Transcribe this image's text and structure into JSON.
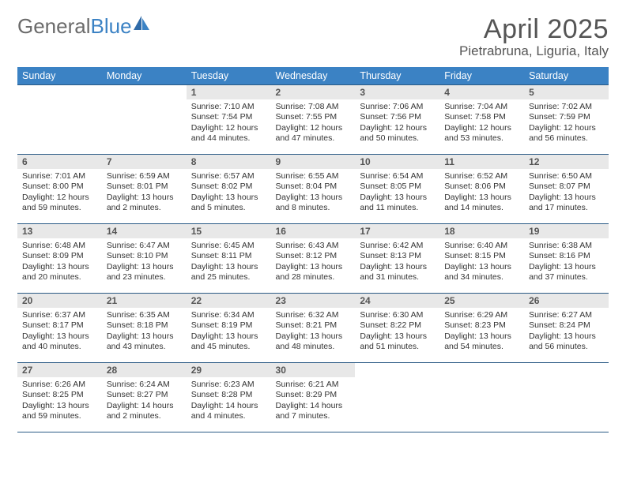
{
  "logo": {
    "text_general": "General",
    "text_blue": "Blue"
  },
  "title": "April 2025",
  "location": "Pietrabruna, Liguria, Italy",
  "colors": {
    "header_bg": "#3b82c4",
    "header_text": "#ffffff",
    "daynum_bg": "#e8e8e8",
    "rule": "#2a5a85",
    "logo_gray": "#6b6b6b",
    "logo_blue": "#3b82c4"
  },
  "day_headers": [
    "Sunday",
    "Monday",
    "Tuesday",
    "Wednesday",
    "Thursday",
    "Friday",
    "Saturday"
  ],
  "weeks": [
    [
      {
        "empty": true
      },
      {
        "empty": true
      },
      {
        "num": "1",
        "sunrise": "7:10 AM",
        "sunset": "7:54 PM",
        "daylight": "12 hours and 44 minutes."
      },
      {
        "num": "2",
        "sunrise": "7:08 AM",
        "sunset": "7:55 PM",
        "daylight": "12 hours and 47 minutes."
      },
      {
        "num": "3",
        "sunrise": "7:06 AM",
        "sunset": "7:56 PM",
        "daylight": "12 hours and 50 minutes."
      },
      {
        "num": "4",
        "sunrise": "7:04 AM",
        "sunset": "7:58 PM",
        "daylight": "12 hours and 53 minutes."
      },
      {
        "num": "5",
        "sunrise": "7:02 AM",
        "sunset": "7:59 PM",
        "daylight": "12 hours and 56 minutes."
      }
    ],
    [
      {
        "num": "6",
        "sunrise": "7:01 AM",
        "sunset": "8:00 PM",
        "daylight": "12 hours and 59 minutes."
      },
      {
        "num": "7",
        "sunrise": "6:59 AM",
        "sunset": "8:01 PM",
        "daylight": "13 hours and 2 minutes."
      },
      {
        "num": "8",
        "sunrise": "6:57 AM",
        "sunset": "8:02 PM",
        "daylight": "13 hours and 5 minutes."
      },
      {
        "num": "9",
        "sunrise": "6:55 AM",
        "sunset": "8:04 PM",
        "daylight": "13 hours and 8 minutes."
      },
      {
        "num": "10",
        "sunrise": "6:54 AM",
        "sunset": "8:05 PM",
        "daylight": "13 hours and 11 minutes."
      },
      {
        "num": "11",
        "sunrise": "6:52 AM",
        "sunset": "8:06 PM",
        "daylight": "13 hours and 14 minutes."
      },
      {
        "num": "12",
        "sunrise": "6:50 AM",
        "sunset": "8:07 PM",
        "daylight": "13 hours and 17 minutes."
      }
    ],
    [
      {
        "num": "13",
        "sunrise": "6:48 AM",
        "sunset": "8:09 PM",
        "daylight": "13 hours and 20 minutes."
      },
      {
        "num": "14",
        "sunrise": "6:47 AM",
        "sunset": "8:10 PM",
        "daylight": "13 hours and 23 minutes."
      },
      {
        "num": "15",
        "sunrise": "6:45 AM",
        "sunset": "8:11 PM",
        "daylight": "13 hours and 25 minutes."
      },
      {
        "num": "16",
        "sunrise": "6:43 AM",
        "sunset": "8:12 PM",
        "daylight": "13 hours and 28 minutes."
      },
      {
        "num": "17",
        "sunrise": "6:42 AM",
        "sunset": "8:13 PM",
        "daylight": "13 hours and 31 minutes."
      },
      {
        "num": "18",
        "sunrise": "6:40 AM",
        "sunset": "8:15 PM",
        "daylight": "13 hours and 34 minutes."
      },
      {
        "num": "19",
        "sunrise": "6:38 AM",
        "sunset": "8:16 PM",
        "daylight": "13 hours and 37 minutes."
      }
    ],
    [
      {
        "num": "20",
        "sunrise": "6:37 AM",
        "sunset": "8:17 PM",
        "daylight": "13 hours and 40 minutes."
      },
      {
        "num": "21",
        "sunrise": "6:35 AM",
        "sunset": "8:18 PM",
        "daylight": "13 hours and 43 minutes."
      },
      {
        "num": "22",
        "sunrise": "6:34 AM",
        "sunset": "8:19 PM",
        "daylight": "13 hours and 45 minutes."
      },
      {
        "num": "23",
        "sunrise": "6:32 AM",
        "sunset": "8:21 PM",
        "daylight": "13 hours and 48 minutes."
      },
      {
        "num": "24",
        "sunrise": "6:30 AM",
        "sunset": "8:22 PM",
        "daylight": "13 hours and 51 minutes."
      },
      {
        "num": "25",
        "sunrise": "6:29 AM",
        "sunset": "8:23 PM",
        "daylight": "13 hours and 54 minutes."
      },
      {
        "num": "26",
        "sunrise": "6:27 AM",
        "sunset": "8:24 PM",
        "daylight": "13 hours and 56 minutes."
      }
    ],
    [
      {
        "num": "27",
        "sunrise": "6:26 AM",
        "sunset": "8:25 PM",
        "daylight": "13 hours and 59 minutes."
      },
      {
        "num": "28",
        "sunrise": "6:24 AM",
        "sunset": "8:27 PM",
        "daylight": "14 hours and 2 minutes."
      },
      {
        "num": "29",
        "sunrise": "6:23 AM",
        "sunset": "8:28 PM",
        "daylight": "14 hours and 4 minutes."
      },
      {
        "num": "30",
        "sunrise": "6:21 AM",
        "sunset": "8:29 PM",
        "daylight": "14 hours and 7 minutes."
      },
      {
        "empty": true
      },
      {
        "empty": true
      },
      {
        "empty": true
      }
    ]
  ],
  "labels": {
    "sunrise": "Sunrise:",
    "sunset": "Sunset:",
    "daylight": "Daylight:"
  }
}
